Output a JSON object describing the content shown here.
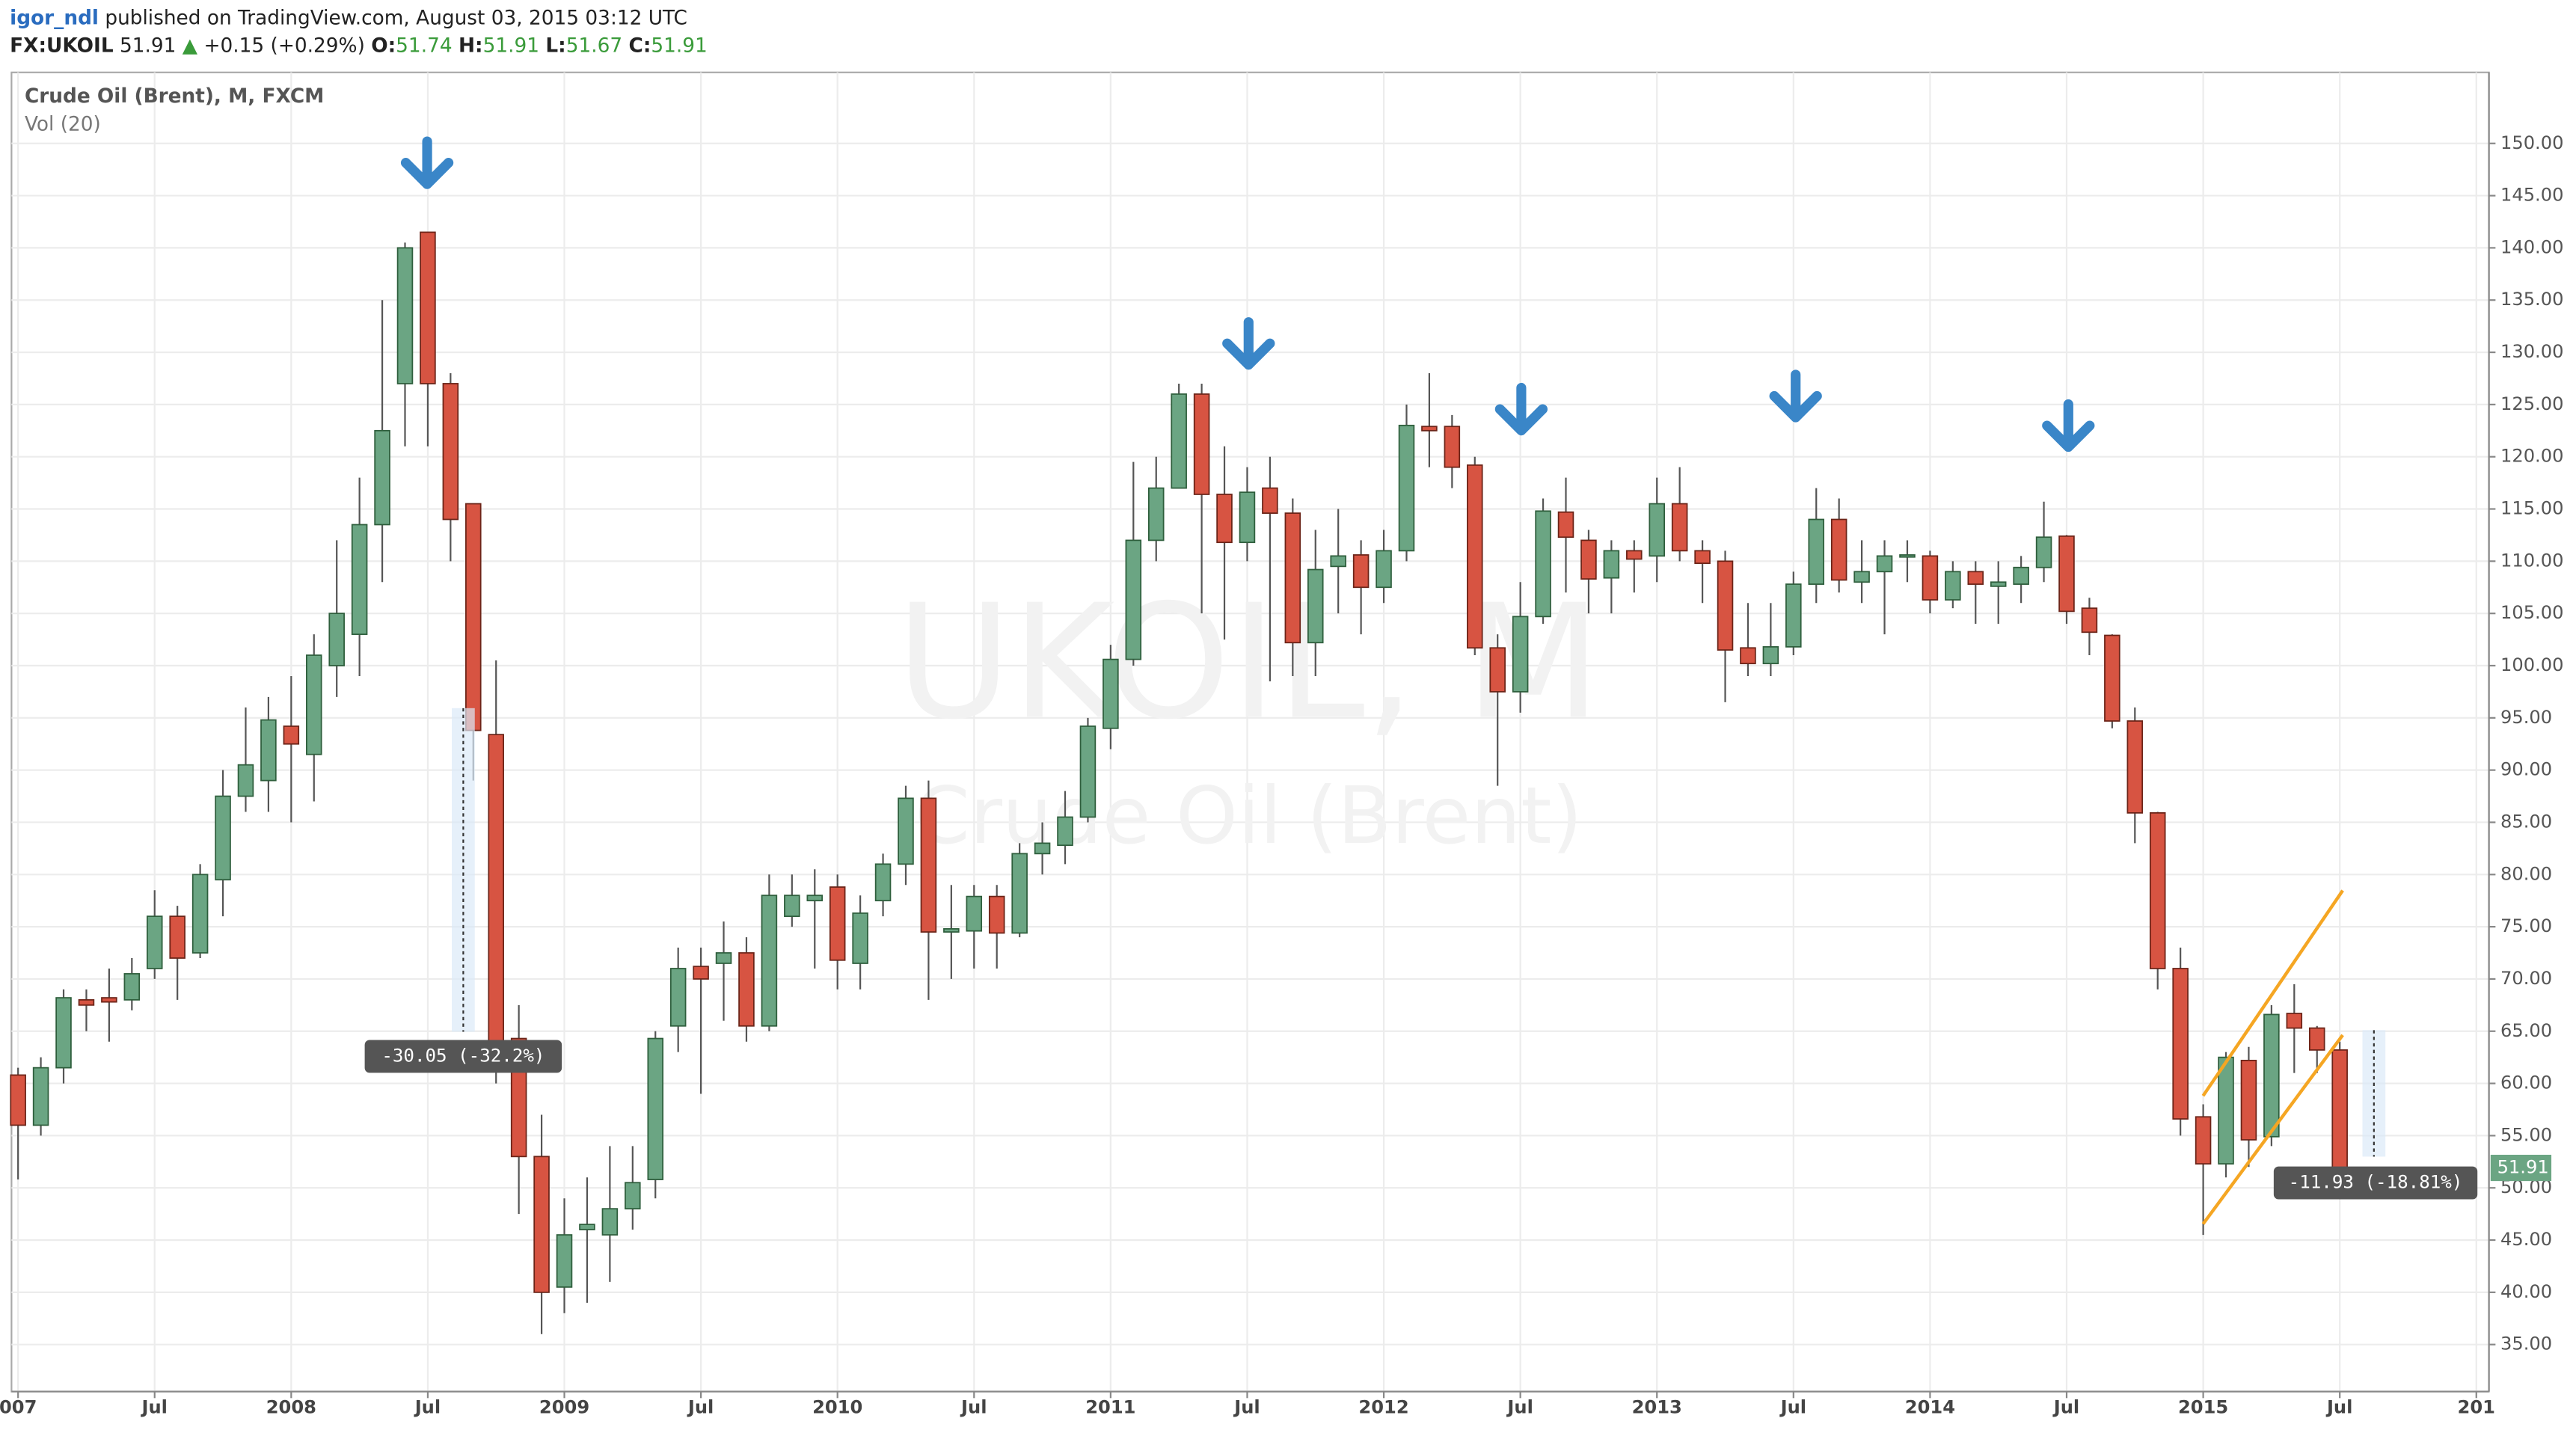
{
  "header": {
    "author": "igor_ndl",
    "published": "published on TradingView.com, August 03, 2015 03:12 UTC",
    "symbol": "FX:UKOIL",
    "last": "51.91",
    "arrow": "▲",
    "change": "+0.15 (+0.29%)",
    "o_label": "O:",
    "o": "51.74",
    "h_label": "H:",
    "h": "51.91",
    "l_label": "L:",
    "l": "51.67",
    "c_label": "C:",
    "c": "51.91"
  },
  "chart_data": {
    "type": "candlestick",
    "legend": "Crude Oil (Brent), M, FXCM",
    "indicator": "Vol (20)",
    "watermark": "UKOIL, M",
    "watermark_sub": "Crude Oil (Brent)",
    "categories": [
      "007",
      null,
      null,
      null,
      null,
      null,
      "Jul",
      null,
      null,
      null,
      null,
      null,
      "2008",
      null,
      null,
      null,
      null,
      null,
      "Jul",
      null,
      null,
      null,
      null,
      null,
      "2009",
      null,
      null,
      null,
      null,
      null,
      "Jul",
      null,
      null,
      null,
      null,
      null,
      "2010",
      null,
      null,
      null,
      null,
      null,
      "Jul",
      null,
      null,
      null,
      null,
      null,
      "2011",
      null,
      null,
      null,
      null,
      null,
      "Jul",
      null,
      null,
      null,
      null,
      null,
      "2012",
      null,
      null,
      null,
      null,
      null,
      "Jul",
      null,
      null,
      null,
      null,
      null,
      "2013",
      null,
      null,
      null,
      null,
      null,
      "Jul",
      null,
      null,
      null,
      null,
      null,
      "2014",
      null,
      null,
      null,
      null,
      null,
      "Jul",
      null,
      null,
      null,
      null,
      null,
      "2015",
      null,
      null,
      null,
      null,
      null,
      "Jul",
      null,
      null,
      null,
      null,
      null,
      "201"
    ],
    "open": [
      60.8,
      56,
      61.5,
      68,
      68.2,
      68,
      71,
      76,
      72.5,
      79.5,
      87.5,
      89,
      94.2,
      91.5,
      100,
      103,
      113.5,
      127,
      141.5,
      127,
      115.5,
      93.4,
      64.3,
      53,
      40.5,
      46,
      45.5,
      48,
      50.8,
      65.5,
      71.2,
      71.5,
      72.5,
      65.5,
      76,
      77.5,
      78.8,
      71.5,
      77.5,
      81,
      87.3,
      74.5,
      74.6,
      77.9,
      74.4,
      82,
      82.8,
      85.5,
      94,
      100.6,
      112,
      117,
      126,
      116.4,
      111.8,
      117,
      114.6,
      102.2,
      109.5,
      110.6,
      107.5,
      111,
      122.9,
      122.9,
      119.2,
      101.7,
      97.5,
      104.7,
      114.7,
      112,
      108.4,
      111,
      110.5,
      115.5,
      111,
      110,
      101.7,
      100.2,
      101.8,
      107.8,
      114,
      108,
      109,
      110.4,
      110.5,
      106.3,
      109,
      107.6,
      107.8,
      109.4,
      112.4,
      105.5,
      102.9,
      94.7,
      85.9,
      71,
      56.8,
      52.3,
      62.2,
      54.9,
      66.7,
      65.3,
      63.2,
      51.74,
      null,
      null,
      null,
      null,
      null
    ],
    "high": [
      61.5,
      62.5,
      69,
      69,
      71,
      72,
      78.5,
      77,
      81,
      90,
      96,
      97,
      99,
      103,
      112,
      118,
      135,
      140.5,
      141.5,
      128,
      115.5,
      100.5,
      67.5,
      57,
      49,
      51,
      54,
      54,
      65,
      73,
      73,
      75.5,
      74,
      80,
      80,
      80.5,
      80,
      78,
      82,
      88.5,
      89,
      79,
      79,
      79,
      83,
      85,
      88,
      95,
      102,
      119.5,
      120,
      127,
      127,
      121,
      119,
      120,
      116,
      113,
      115,
      112,
      113,
      125,
      128,
      124,
      120,
      103,
      108,
      116,
      118,
      113,
      112,
      112,
      118,
      119,
      112,
      111,
      106,
      106,
      109,
      117,
      116,
      112,
      112,
      112,
      111,
      110,
      110,
      110,
      110.5,
      115.7,
      112.5,
      106.5,
      103,
      96,
      86,
      73,
      58,
      63,
      63.5,
      67.5,
      69.5,
      65.5,
      64,
      51.91,
      null,
      null,
      null,
      null,
      null
    ],
    "low": [
      50.8,
      55,
      60,
      65,
      64,
      67,
      70,
      68,
      72,
      76,
      86,
      86,
      85,
      87,
      97,
      99,
      108,
      121,
      121,
      110,
      89,
      60,
      47.5,
      36,
      38,
      39,
      41,
      46,
      49,
      63,
      59,
      66,
      64,
      65,
      75,
      71,
      69,
      69,
      76,
      79,
      68,
      70,
      71,
      71,
      74,
      80,
      81,
      85,
      92,
      100,
      110,
      117,
      105,
      102.5,
      110,
      98.5,
      99,
      99,
      105,
      103,
      106,
      110,
      119,
      117,
      101,
      88.5,
      95.5,
      104,
      107,
      105,
      105,
      107,
      108,
      110,
      106,
      96.5,
      99,
      99,
      101,
      106,
      107,
      106,
      103,
      108,
      105,
      105.5,
      104,
      104,
      106,
      108,
      104,
      101,
      94,
      83,
      69,
      55,
      45.5,
      51,
      52,
      54,
      61,
      61,
      51.7,
      51.67,
      null,
      null,
      null,
      null,
      null
    ],
    "close": [
      56,
      61.5,
      68.2,
      67.5,
      67.8,
      70.5,
      76,
      72,
      80,
      87.5,
      90.5,
      94.8,
      92.5,
      101,
      105,
      113.5,
      122.5,
      140,
      127,
      114,
      93.8,
      63,
      53,
      40,
      45.5,
      46.5,
      48,
      50.5,
      64.3,
      71,
      70,
      72.5,
      65.5,
      78,
      78,
      78,
      71.8,
      76.3,
      81,
      87.3,
      74.5,
      74.8,
      77.9,
      74.4,
      82,
      83,
      85.5,
      94.2,
      100.6,
      112,
      117,
      126,
      116.4,
      111.8,
      116.6,
      114.6,
      102.2,
      109.2,
      110.5,
      107.5,
      111,
      123,
      122.5,
      119,
      101.7,
      97.5,
      104.7,
      114.8,
      112.3,
      108.3,
      111,
      110.2,
      115.5,
      111,
      109.8,
      101.5,
      100.2,
      101.8,
      107.8,
      114,
      108.2,
      109,
      110.5,
      110.6,
      106.3,
      109,
      107.8,
      108,
      109.4,
      112.3,
      105.2,
      103.2,
      94.7,
      85.9,
      71,
      56.6,
      52.3,
      62.5,
      54.6,
      66.6,
      65.3,
      63.2,
      51.9,
      51.91,
      null,
      null,
      null,
      null,
      null
    ],
    "up_color": "#6ba583",
    "down_color": "#d75442",
    "ylim": [
      30.5,
      156.8
    ],
    "yticks": [
      {
        "value": 35,
        "label": "35.00"
      },
      {
        "value": 40,
        "label": "40.00"
      },
      {
        "value": 45,
        "label": "45.00"
      },
      {
        "value": 50,
        "label": "50.00"
      },
      {
        "value": 55,
        "label": "55.00"
      },
      {
        "value": 60,
        "label": "60.00"
      },
      {
        "value": 65,
        "label": "65.00"
      },
      {
        "value": 70,
        "label": "70.00"
      },
      {
        "value": 75,
        "label": "75.00"
      },
      {
        "value": 80,
        "label": "80.00"
      },
      {
        "value": 85,
        "label": "85.00"
      },
      {
        "value": 90,
        "label": "90.00"
      },
      {
        "value": 95,
        "label": "95.00"
      },
      {
        "value": 100,
        "label": "100.00"
      },
      {
        "value": 105,
        "label": "105.00"
      },
      {
        "value": 110,
        "label": "110.00"
      },
      {
        "value": 115,
        "label": "115.00"
      },
      {
        "value": 120,
        "label": "120.00"
      },
      {
        "value": 125,
        "label": "125.00"
      },
      {
        "value": 130,
        "label": "130.00"
      },
      {
        "value": 135,
        "label": "135.00"
      },
      {
        "value": 140,
        "label": "140.00"
      },
      {
        "value": 145,
        "label": "145.00"
      },
      {
        "value": 150,
        "label": "150.00"
      }
    ],
    "price_label": {
      "value": 51.91,
      "label": "51.91"
    },
    "annotations": [
      "-30.05 (-32.2%)",
      "-11.93 (-18.81%)"
    ],
    "grid": true
  }
}
